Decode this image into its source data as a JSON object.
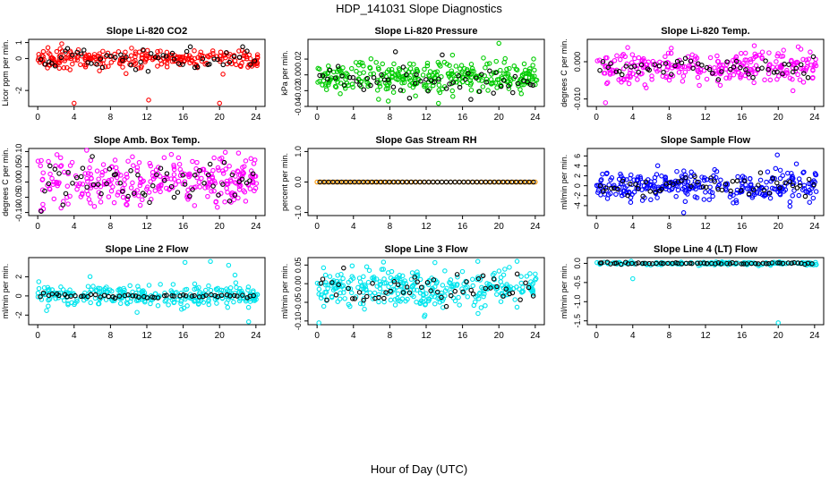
{
  "page_title": "HDP_141031  Slope Diagnostics",
  "x_axis_title": "Hour of Day (UTC)",
  "colors": {
    "ref": "#000000"
  },
  "chart_data": [
    {
      "type": "scatter",
      "title": "Slope Li-820 CO2",
      "ylabel": "Licor ppm per min.",
      "color": "#ff0000",
      "xlim": [
        -1,
        25
      ],
      "ylim": [
        -3,
        1.2
      ],
      "yticks": [
        1,
        0,
        -2
      ],
      "yticklabels": [
        "1",
        "0",
        "-2"
      ],
      "xticks": [
        0,
        4,
        8,
        12,
        16,
        20,
        24
      ],
      "xticklabels": [
        "0",
        "4",
        "8",
        "12",
        "16",
        "20",
        "24"
      ],
      "center": 0,
      "spread": 0.28,
      "ref_spread": 0.35,
      "n": 260,
      "n_ref": 55,
      "extra_points": [
        [
          4.0,
          -2.8
        ],
        [
          12.2,
          -2.6
        ],
        [
          20.0,
          -2.8
        ]
      ]
    },
    {
      "type": "scatter",
      "title": "Slope Li-820 Pressure",
      "ylabel": "kPa per min.",
      "color": "#00cc00",
      "xlim": [
        -1,
        25
      ],
      "ylim": [
        -0.04,
        0.045
      ],
      "yticks": [
        0.02,
        0.0,
        -0.02,
        -0.04
      ],
      "yticklabels": [
        "0.02",
        "0.00",
        "-0.02",
        "-0.04"
      ],
      "xticks": [
        0,
        4,
        8,
        12,
        16,
        20,
        24
      ],
      "xticklabels": [
        "0",
        "4",
        "8",
        "12",
        "16",
        "20",
        "24"
      ],
      "center": -0.003,
      "spread": 0.011,
      "ref_spread": 0.012,
      "n": 320,
      "n_ref": 60,
      "extra_points": [
        [
          20.0,
          0.04
        ]
      ]
    },
    {
      "type": "scatter",
      "title": "Slope Li-820 Temp.",
      "ylabel": "degrees C per min.",
      "color": "#ff00ff",
      "xlim": [
        -1,
        25
      ],
      "ylim": [
        -0.012,
        0.006
      ],
      "yticks": [
        0.0,
        -0.01
      ],
      "yticklabels": [
        "0.000",
        "-0.010"
      ],
      "xticks": [
        0,
        4,
        8,
        12,
        16,
        20,
        24
      ],
      "xticklabels": [
        "0",
        "4",
        "8",
        "12",
        "16",
        "20",
        "24"
      ],
      "center": -0.0015,
      "spread": 0.0022,
      "ref_spread": 0.0012,
      "n": 280,
      "n_ref": 55,
      "extra_points": [
        [
          1.0,
          -0.011
        ],
        [
          22.2,
          0.004
        ]
      ]
    },
    {
      "type": "scatter",
      "title": "Slope Amb. Box Temp.",
      "ylabel": "degrees C per min.",
      "color": "#ff00ff",
      "xlim": [
        -1,
        25
      ],
      "ylim": [
        -0.11,
        0.11
      ],
      "yticks": [
        0.1,
        0.05,
        0.0,
        -0.05,
        -0.1
      ],
      "yticklabels": [
        "0.10",
        "0.05",
        "0.00",
        "-0.05",
        "-0.10"
      ],
      "xticks": [
        0,
        4,
        8,
        12,
        16,
        20,
        24
      ],
      "xticklabels": [
        "0",
        "4",
        "8",
        "12",
        "16",
        "20",
        "24"
      ],
      "center": 0.0,
      "spread": 0.04,
      "ref_spread": 0.04,
      "n": 300,
      "n_ref": 60,
      "extra_points": []
    },
    {
      "type": "scatter",
      "title": "Slope Gas Stream RH",
      "ylabel": "percent per min.",
      "color": "#ff9900",
      "xlim": [
        -1,
        25
      ],
      "ylim": [
        -1.1,
        1.1
      ],
      "yticks": [
        1.0,
        0.0,
        -1.0
      ],
      "yticklabels": [
        "1.0",
        "0.0",
        "-1.0"
      ],
      "xticks": [
        0,
        4,
        8,
        12,
        16,
        20,
        24
      ],
      "xticklabels": [
        "0",
        "4",
        "8",
        "12",
        "16",
        "20",
        "24"
      ],
      "center": 0.0,
      "spread": 0.0,
      "ref_spread": 0.0,
      "n": 50,
      "n_ref": 50,
      "extra_points": []
    },
    {
      "type": "scatter",
      "title": "Slope Sample Flow",
      "ylabel": "ml/min per min.",
      "color": "#0000ff",
      "xlim": [
        -1,
        25
      ],
      "ylim": [
        -6,
        7.5
      ],
      "yticks": [
        6,
        4,
        2,
        0,
        -2,
        -4
      ],
      "yticklabels": [
        "6",
        "4",
        "2",
        "0",
        "-2",
        "-4"
      ],
      "xticks": [
        0,
        4,
        8,
        12,
        16,
        20,
        24
      ],
      "xticklabels": [
        "0",
        "4",
        "8",
        "12",
        "16",
        "20",
        "24"
      ],
      "center": 0.0,
      "spread": 1.5,
      "ref_spread": 1.0,
      "n": 300,
      "n_ref": 55,
      "extra_points": [
        [
          19.9,
          6.2
        ],
        [
          22.0,
          4.4
        ]
      ]
    },
    {
      "type": "scatter",
      "title": "Slope Line 2 Flow",
      "ylabel": "ml/min per min.",
      "color": "#00e5ee",
      "xlim": [
        -1,
        25
      ],
      "ylim": [
        -3,
        4
      ],
      "yticks": [
        2,
        0,
        -2
      ],
      "yticklabels": [
        "2",
        "0",
        "-2"
      ],
      "xticks": [
        0,
        4,
        8,
        12,
        16,
        20,
        24
      ],
      "xticklabels": [
        "0",
        "4",
        "8",
        "12",
        "16",
        "20",
        "24"
      ],
      "center": 0.0,
      "spread": 0.55,
      "ref_spread": 0.12,
      "n": 280,
      "n_ref": 55,
      "extra_points": [
        [
          16.2,
          3.5
        ],
        [
          19.0,
          3.6
        ],
        [
          21.0,
          3.2
        ],
        [
          23.2,
          -2.7
        ]
      ]
    },
    {
      "type": "scatter",
      "title": "Slope Line 3 Flow",
      "ylabel": "ml/min per min.",
      "color": "#00e5ee",
      "xlim": [
        -1,
        25
      ],
      "ylim": [
        -0.11,
        0.07
      ],
      "yticks": [
        0.05,
        0.0,
        -0.05,
        -0.1
      ],
      "yticklabels": [
        "0.05",
        "0.00",
        "-0.05",
        "-0.10"
      ],
      "xticks": [
        0,
        4,
        8,
        12,
        16,
        20,
        24
      ],
      "xticklabels": [
        "0",
        "4",
        "8",
        "12",
        "16",
        "20",
        "24"
      ],
      "center": -0.012,
      "spread": 0.025,
      "ref_spread": 0.018,
      "n": 320,
      "n_ref": 55,
      "extra_points": [
        [
          0.2,
          -0.105
        ],
        [
          22.0,
          0.06
        ]
      ]
    },
    {
      "type": "scatter",
      "title": "Slope Line 4 (LT) Flow",
      "ylabel": "ml/min per min.",
      "color": "#00e5ee",
      "xlim": [
        -1,
        25
      ],
      "ylim": [
        -1.6,
        0.15
      ],
      "yticks": [
        0.0,
        -0.5,
        -1.0,
        -1.5
      ],
      "yticklabels": [
        "0.0",
        "-0.5",
        "-1.0",
        "-1.5"
      ],
      "xticks": [
        0,
        4,
        8,
        12,
        16,
        20,
        24
      ],
      "xticklabels": [
        "0",
        "4",
        "8",
        "12",
        "16",
        "20",
        "24"
      ],
      "center": 0.0,
      "spread": 0.02,
      "ref_spread": 0.01,
      "n": 150,
      "n_ref": 60,
      "extra_points": [
        [
          4.0,
          -0.4
        ],
        [
          20.0,
          -1.55
        ]
      ]
    }
  ]
}
